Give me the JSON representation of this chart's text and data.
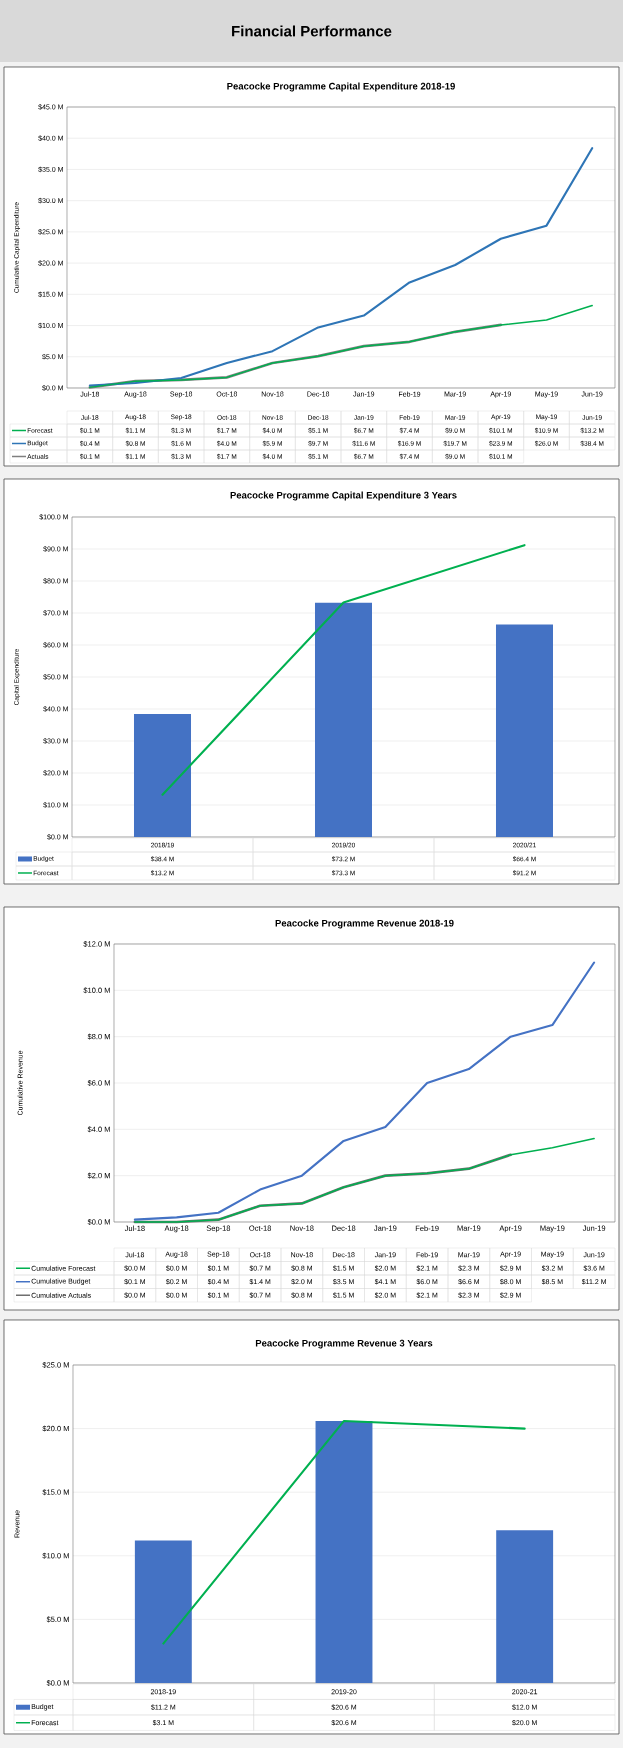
{
  "chart_data": [
    {
      "type": "line",
      "title": "Peacocke Programme Capital Expenditure 2018-19",
      "ylabel": "Cumulative Capital Expenditure",
      "annotations": [
        "Financial Performance"
      ],
      "categories": [
        "Jul-18",
        "Aug-18",
        "Sep-18",
        "Oct-18",
        "Nov-18",
        "Dec-18",
        "Jan-19",
        "Feb-19",
        "Mar-19",
        "Apr-19",
        "May-19",
        "Jun-19"
      ],
      "series": [
        {
          "name": "Forecast",
          "color": "#00b050",
          "values": [
            0.1,
            1.1,
            1.3,
            1.7,
            4.0,
            5.1,
            6.7,
            7.4,
            9.0,
            10.1,
            10.9,
            13.2
          ],
          "value_labels": [
            "$0.1 M",
            "$1.1 M",
            "$1.3 M",
            "$1.7 M",
            "$4.0 M",
            "$5.1 M",
            "$6.7 M",
            "$7.4 M",
            "$9.0 M",
            "$10.1 M",
            "$10.9 M",
            "$13.2 M"
          ]
        },
        {
          "name": "Budget",
          "color": "#2e75b6",
          "values": [
            0.4,
            0.8,
            1.6,
            4.0,
            5.9,
            9.7,
            11.6,
            16.9,
            19.7,
            23.9,
            26.0,
            38.4
          ],
          "value_labels": [
            "$0.4 M",
            "$0.8 M",
            "$1.6 M",
            "$4.0 M",
            "$5.9 M",
            "$9.7 M",
            "$11.6 M",
            "$16.9 M",
            "$19.7 M",
            "$23.9 M",
            "$26.0 M",
            "$38.4 M"
          ]
        },
        {
          "name": "Actuals",
          "color": "#7f7f7f",
          "values": [
            0.1,
            1.1,
            1.3,
            1.7,
            4.0,
            5.1,
            6.7,
            7.4,
            9.0,
            10.1,
            null,
            null
          ],
          "value_labels": [
            "$0.1 M",
            "$1.1 M",
            "$1.3 M",
            "$1.7 M",
            "$4.0 M",
            "$5.1 M",
            "$6.7 M",
            "$7.4 M",
            "$9.0 M",
            "$10.1 M",
            null,
            null
          ]
        }
      ],
      "ylim": [
        0,
        45
      ],
      "yticks": [
        {
          "value": 0,
          "label": "$0.0 M"
        },
        {
          "value": 5,
          "label": "$5.0 M"
        },
        {
          "value": 10,
          "label": "$10.0 M"
        },
        {
          "value": 15,
          "label": "$15.0 M"
        },
        {
          "value": 20,
          "label": "$20.0 M"
        },
        {
          "value": 25,
          "label": "$25.0 M"
        },
        {
          "value": 30,
          "label": "$30.0 M"
        },
        {
          "value": 35,
          "label": "$35.0 M"
        },
        {
          "value": 40,
          "label": "$40.0 M"
        },
        {
          "value": 45,
          "label": "$45.0 M"
        }
      ],
      "grid": "y",
      "legend": "bottom",
      "line_style": "solid"
    },
    {
      "type": "bar",
      "title": "Peacocke Programme Capital Expenditure 3 Years",
      "ylabel": "Capital Expenditure",
      "categories": [
        "2018/19",
        "2019/20",
        "2020/21"
      ],
      "series": [
        {
          "name": "Budget",
          "type": "bar",
          "color": "#4472c4",
          "values": [
            38.4,
            73.2,
            66.4
          ],
          "value_labels": [
            "$38.4 M",
            "$73.2 M",
            "$66.4 M"
          ]
        },
        {
          "name": "Forecast",
          "type": "line",
          "color": "#00b050",
          "values": [
            13.2,
            73.3,
            91.2
          ],
          "value_labels": [
            "$13.2 M",
            "$73.3 M",
            "$91.2 M"
          ]
        }
      ],
      "ylim": [
        0,
        100
      ],
      "yticks": [
        {
          "value": 0,
          "label": "$0.0 M"
        },
        {
          "value": 10,
          "label": "$10.0 M"
        },
        {
          "value": 20,
          "label": "$20.0 M"
        },
        {
          "value": 30,
          "label": "$30.0 M"
        },
        {
          "value": 40,
          "label": "$40.0 M"
        },
        {
          "value": 50,
          "label": "$50.0 M"
        },
        {
          "value": 60,
          "label": "$60.0 M"
        },
        {
          "value": 70,
          "label": "$70.0 M"
        },
        {
          "value": 80,
          "label": "$80.0 M"
        },
        {
          "value": 90,
          "label": "$90.0 M"
        },
        {
          "value": 100,
          "label": "$100.0 M"
        }
      ],
      "grid": "y",
      "legend": "bottom",
      "line_style": "solid"
    },
    {
      "type": "line",
      "title": "Peacocke Programme Revenue 2018-19",
      "ylabel": "Cumulative Revenue",
      "categories": [
        "Jul-18",
        "Aug-18",
        "Sep-18",
        "Oct-18",
        "Nov-18",
        "Dec-18",
        "Jan-19",
        "Feb-19",
        "Mar-19",
        "Apr-19",
        "May-19",
        "Jun-19"
      ],
      "series": [
        {
          "name": "Cumulative Forecast",
          "color": "#00b050",
          "values": [
            0.0,
            0.0,
            0.1,
            0.7,
            0.8,
            1.5,
            2.0,
            2.1,
            2.3,
            2.9,
            3.2,
            3.6
          ],
          "value_labels": [
            "$0.0 M",
            "$0.0 M",
            "$0.1 M",
            "$0.7 M",
            "$0.8 M",
            "$1.5 M",
            "$2.0 M",
            "$2.1 M",
            "$2.3 M",
            "$2.9 M",
            "$3.2 M",
            "$3.6 M"
          ]
        },
        {
          "name": "Cumulative Budget",
          "color": "#4472c4",
          "values": [
            0.1,
            0.2,
            0.4,
            1.4,
            2.0,
            3.5,
            4.1,
            6.0,
            6.6,
            8.0,
            8.5,
            11.2
          ],
          "value_labels": [
            "$0.1 M",
            "$0.2 M",
            "$0.4 M",
            "$1.4 M",
            "$2.0 M",
            "$3.5 M",
            "$4.1 M",
            "$6.0 M",
            "$6.6 M",
            "$8.0 M",
            "$8.5 M",
            "$11.2 M"
          ]
        },
        {
          "name": "Cumulative Actuals",
          "color": "#6f6f6f",
          "values": [
            0.0,
            0.0,
            0.1,
            0.7,
            0.8,
            1.5,
            2.0,
            2.1,
            2.3,
            2.9,
            null,
            null
          ],
          "value_labels": [
            "$0.0 M",
            "$0.0 M",
            "$0.1 M",
            "$0.7 M",
            "$0.8 M",
            "$1.5 M",
            "$2.0 M",
            "$2.1 M",
            "$2.3 M",
            "$2.9 M",
            null,
            null
          ]
        }
      ],
      "ylim": [
        0,
        12
      ],
      "yticks": [
        {
          "value": 0,
          "label": "$0.0 M"
        },
        {
          "value": 2,
          "label": "$2.0 M"
        },
        {
          "value": 4,
          "label": "$4.0 M"
        },
        {
          "value": 6,
          "label": "$6.0 M"
        },
        {
          "value": 8,
          "label": "$8.0 M"
        },
        {
          "value": 10,
          "label": "$10.0 M"
        },
        {
          "value": 12,
          "label": "$12.0 M"
        }
      ],
      "grid": "y",
      "legend": "bottom",
      "line_style": "solid"
    },
    {
      "type": "bar",
      "title": "Peacocke Programme Revenue 3 Years",
      "ylabel": "Revenue",
      "categories": [
        "2018-19",
        "2019-20",
        "2020-21"
      ],
      "series": [
        {
          "name": "Budget",
          "type": "bar",
          "color": "#4472c4",
          "values": [
            11.2,
            20.6,
            12.0
          ],
          "value_labels": [
            "$11.2 M",
            "$20.6 M",
            "$12.0 M"
          ]
        },
        {
          "name": "Forecast",
          "type": "line",
          "color": "#00b050",
          "values": [
            3.1,
            20.6,
            20.0
          ],
          "value_labels": [
            "$3.1 M",
            "$20.6 M",
            "$20.0 M"
          ]
        }
      ],
      "ylim": [
        0,
        25
      ],
      "yticks": [
        {
          "value": 0,
          "label": "$0.0 M"
        },
        {
          "value": 5,
          "label": "$5.0 M"
        },
        {
          "value": 10,
          "label": "$10.0 M"
        },
        {
          "value": 15,
          "label": "$15.0 M"
        },
        {
          "value": 20,
          "label": "$20.0 M"
        },
        {
          "value": 25,
          "label": "$25.0 M"
        }
      ],
      "grid": "y",
      "legend": "bottom",
      "line_style": "solid"
    }
  ]
}
